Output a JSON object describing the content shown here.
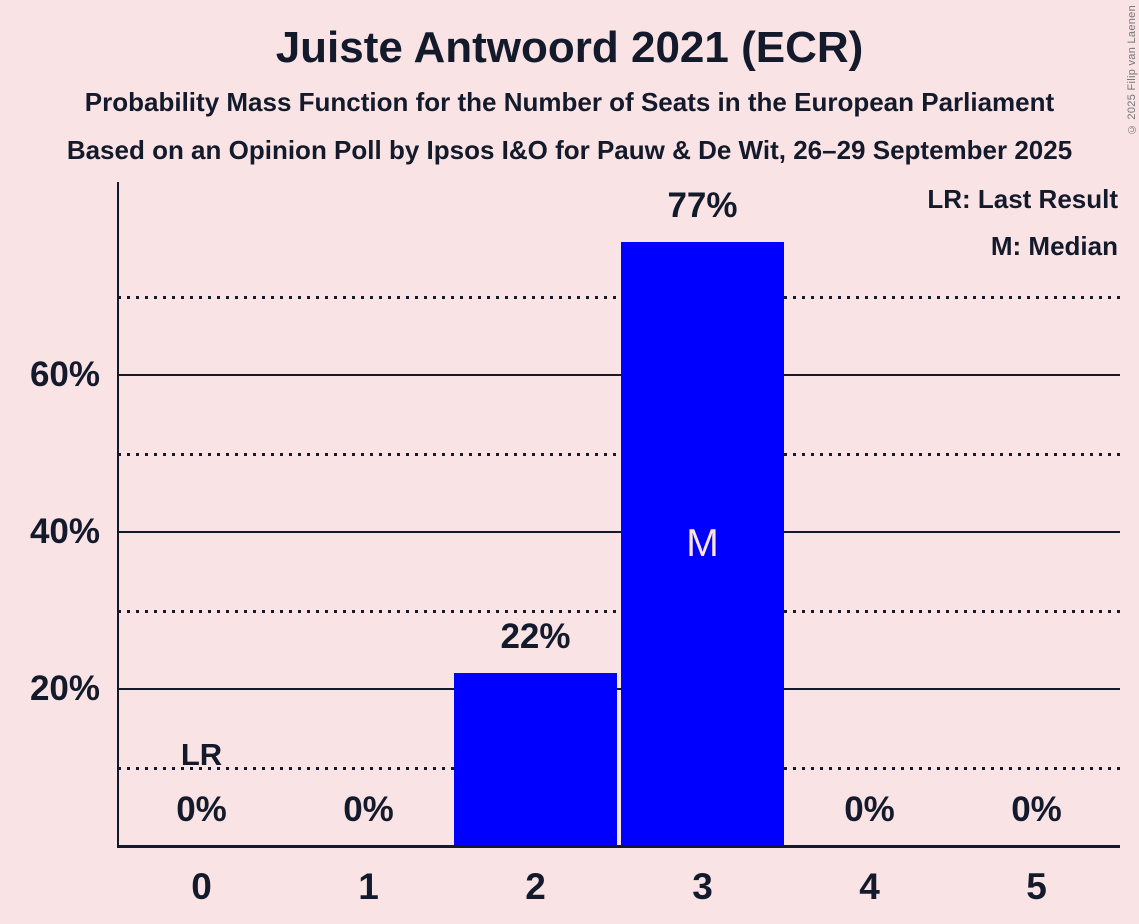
{
  "chart_data": {
    "type": "bar",
    "title": "Juiste Antwoord 2021 (ECR)",
    "subtitle": "Probability Mass Function for the Number of Seats in the European Parliament",
    "source_line": "Based on an Opinion Poll by Ipsos I&O for Pauw & De Wit, 26–29 September 2025",
    "copyright": "© 2025 Filip van Laenen",
    "categories": [
      "0",
      "1",
      "2",
      "3",
      "4",
      "5"
    ],
    "values": [
      0,
      0,
      22,
      77,
      0,
      0
    ],
    "value_labels": [
      "0%",
      "0%",
      "22%",
      "77%",
      "0%",
      "0%"
    ],
    "xlabel": "",
    "ylabel": "",
    "ylim": [
      0,
      84
    ],
    "solid_gridlines": [
      {
        "value": 20,
        "label": "20%"
      },
      {
        "value": 40,
        "label": "40%"
      },
      {
        "value": 60,
        "label": "60%"
      }
    ],
    "dotted_gridlines": [
      10,
      30,
      50,
      70
    ],
    "median": {
      "category": "3",
      "label": "M"
    },
    "last_result": {
      "category": "0",
      "label": "LR"
    },
    "legend": [
      "LR: Last Result",
      "M: Median"
    ],
    "legend_position": "top-right",
    "grid": "horizontal",
    "colors": {
      "background": "#fae3e4",
      "bar": "#0000ff",
      "text": "#131a2b",
      "copyright": "#777777"
    }
  }
}
